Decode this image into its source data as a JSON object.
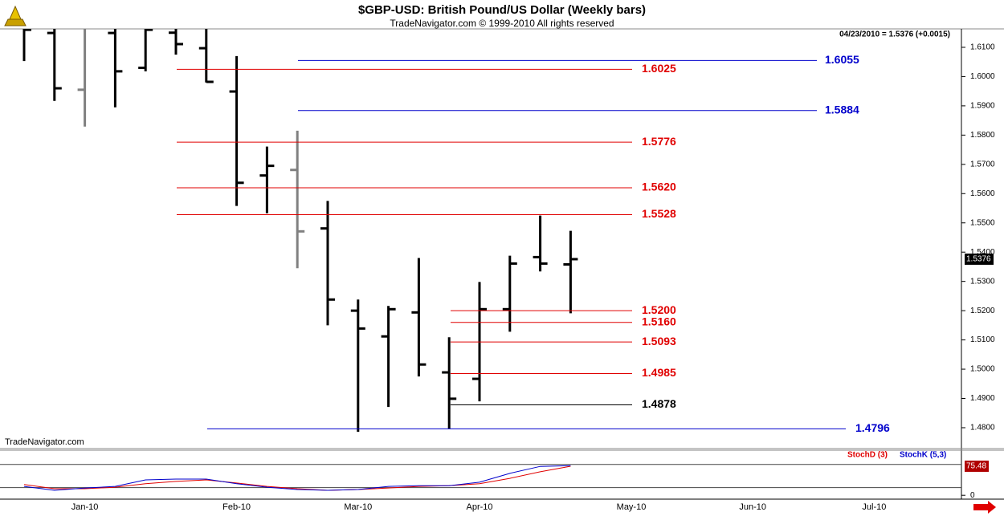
{
  "chart_data": {
    "type": "ohlc",
    "title": "$GBP-USD:  British Pound/US Dollar  (Weekly bars)",
    "subtitle": "TradeNavigator.com © 1999-2010 All rights reserved",
    "quote": "04/23/2010 = 1.5376 (+0.0015)",
    "watermark": "TradeNavigator.com",
    "categories": [
      null,
      null,
      "Jan-10",
      null,
      null,
      null,
      null,
      "Feb-10",
      null,
      null,
      null,
      "Mar-10",
      null,
      null,
      null,
      "Apr-10",
      null,
      null,
      null,
      null,
      "May-10",
      null,
      null,
      null,
      "Jun-10",
      null,
      null,
      null,
      "Jul-10",
      null,
      null
    ],
    "open": [
      1.617,
      1.6149,
      1.5955,
      1.6149,
      1.603,
      1.615,
      1.6097,
      1.5949,
      1.5662,
      1.5681,
      1.5481,
      1.52,
      1.5112,
      1.5194,
      1.4989,
      1.4967,
      1.5205,
      1.5383,
      1.5358,
      null,
      null,
      null,
      null,
      null,
      null,
      null,
      null,
      null,
      null,
      null,
      null
    ],
    "high": [
      1.618,
      1.617,
      1.618,
      1.618,
      1.618,
      1.617,
      1.617,
      1.607,
      1.5761,
      1.5815,
      1.5575,
      1.5238,
      1.5216,
      1.538,
      1.5109,
      1.5298,
      1.5388,
      1.5525,
      1.5473,
      null,
      null,
      null,
      null,
      null,
      null,
      null,
      null,
      null,
      null,
      null,
      null
    ],
    "low": [
      1.6053,
      1.5917,
      1.5829,
      1.5895,
      1.6018,
      1.6075,
      1.598,
      1.5558,
      1.5533,
      1.5345,
      1.515,
      1.4786,
      1.4871,
      1.4975,
      1.4797,
      1.489,
      1.5128,
      1.5334,
      1.5191,
      null,
      null,
      null,
      null,
      null,
      null,
      null,
      null,
      null,
      null,
      null,
      null
    ],
    "close": [
      1.616,
      1.596,
      1.617,
      1.6018,
      1.616,
      1.6111,
      1.5982,
      1.5637,
      1.5695,
      1.5471,
      1.5238,
      1.5139,
      1.5205,
      1.5016,
      1.4899,
      1.5205,
      1.5361,
      1.5361,
      1.5376,
      null,
      null,
      null,
      null,
      null,
      null,
      null,
      null,
      null,
      null,
      null,
      null
    ],
    "bar_colors": [
      "#000000",
      "#000000",
      "#808080",
      "#000000",
      "#000000",
      "#000000",
      "#000000",
      "#000000",
      "#000000",
      "#808080",
      "#000000",
      "#000000",
      "#000000",
      "#000000",
      "#000000",
      "#000000",
      "#000000",
      "#000000",
      "#000000",
      null,
      null,
      null,
      null,
      null,
      null,
      null,
      null,
      null,
      null,
      null,
      null
    ],
    "ylim": [
      1.4767,
      1.6163
    ],
    "yticks": [
      {
        "value": 1.61,
        "label": "1.6100"
      },
      {
        "value": 1.6,
        "label": "1.6000"
      },
      {
        "value": 1.59,
        "label": "1.5900"
      },
      {
        "value": 1.58,
        "label": "1.5800"
      },
      {
        "value": 1.57,
        "label": "1.5700"
      },
      {
        "value": 1.56,
        "label": "1.5600"
      },
      {
        "value": 1.55,
        "label": "1.5500"
      },
      {
        "value": 1.54,
        "label": "1.5400"
      },
      {
        "value": 1.53,
        "label": "1.5300"
      },
      {
        "value": 1.52,
        "label": "1.5200"
      },
      {
        "value": 1.51,
        "label": "1.5100"
      },
      {
        "value": 1.5,
        "label": "1.5000"
      },
      {
        "value": 1.49,
        "label": "1.4900"
      },
      {
        "value": 1.48,
        "label": "1.4800"
      }
    ],
    "last_label": {
      "value": 1.5376,
      "label": "1.5376"
    },
    "levels": [
      {
        "value": 1.6055,
        "label": "1.6055",
        "color": "#0000cc"
      },
      {
        "value": 1.6025,
        "label": "1.6025",
        "color": "#e00000"
      },
      {
        "value": 1.5884,
        "label": "1.5884",
        "color": "#0000cc"
      },
      {
        "value": 1.5776,
        "label": "1.5776",
        "color": "#e00000"
      },
      {
        "value": 1.562,
        "label": "1.5620",
        "color": "#e00000"
      },
      {
        "value": 1.5528,
        "label": "1.5528",
        "color": "#e00000"
      },
      {
        "value": 1.52,
        "label": "1.5200",
        "color": "#e00000"
      },
      {
        "value": 1.516,
        "label": "1.5160",
        "color": "#e00000"
      },
      {
        "value": 1.5093,
        "label": "1.5093",
        "color": "#e00000"
      },
      {
        "value": 1.4985,
        "label": "1.4985",
        "color": "#e00000"
      },
      {
        "value": 1.4878,
        "label": "1.4878",
        "color": "#000000"
      },
      {
        "value": 1.4796,
        "label": "1.4796",
        "color": "#0000cc"
      }
    ],
    "indicator": {
      "series": [
        {
          "name": "StochD (3)",
          "color": "#e00000",
          "values": [
            28,
            17,
            17,
            21,
            30,
            36,
            40,
            32,
            23,
            17,
            13,
            15,
            19,
            23,
            25,
            30,
            44,
            61,
            75.48,
            null,
            null,
            null,
            null,
            null,
            null,
            null,
            null,
            null,
            null,
            null,
            null
          ]
        },
        {
          "name": "StochK (5,3)",
          "color": "#0000cc",
          "values": [
            23,
            13,
            19,
            23,
            40,
            42,
            42,
            30,
            21,
            15,
            13,
            15,
            23,
            25,
            25,
            34,
            57,
            75,
            77,
            null,
            null,
            null,
            null,
            null,
            null,
            null,
            null,
            null,
            null,
            null,
            null
          ]
        }
      ],
      "ylim": [
        -10,
        115
      ],
      "yticks": [
        0
      ],
      "ref_lines": [
        80,
        20
      ],
      "last_label": {
        "value": 75.48,
        "label": "75.48"
      }
    }
  }
}
